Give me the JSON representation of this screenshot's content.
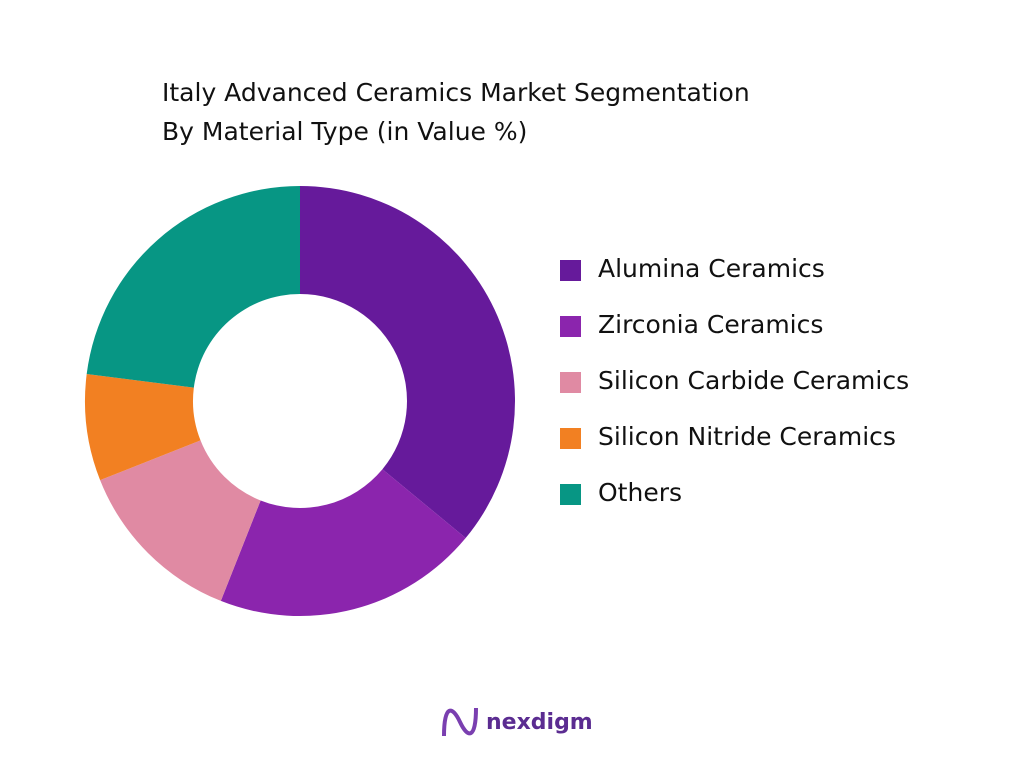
{
  "chart_data": {
    "type": "donut",
    "title": [
      "Italy Advanced Ceramics Market Segmentation",
      "By Material Type  (in Value %)"
    ],
    "categories": [
      "Alumina Ceramics",
      "Zirconia Ceramics",
      "Silicon Carbide Ceramics",
      "Silicon Nitride Ceramics",
      "Others"
    ],
    "values": [
      36,
      20,
      13,
      8,
      23
    ],
    "colors": [
      "#661a9b",
      "#8b25ad",
      "#e08aa3",
      "#f28022",
      "#079684"
    ],
    "legend": "right"
  },
  "brand": "nexdigm"
}
